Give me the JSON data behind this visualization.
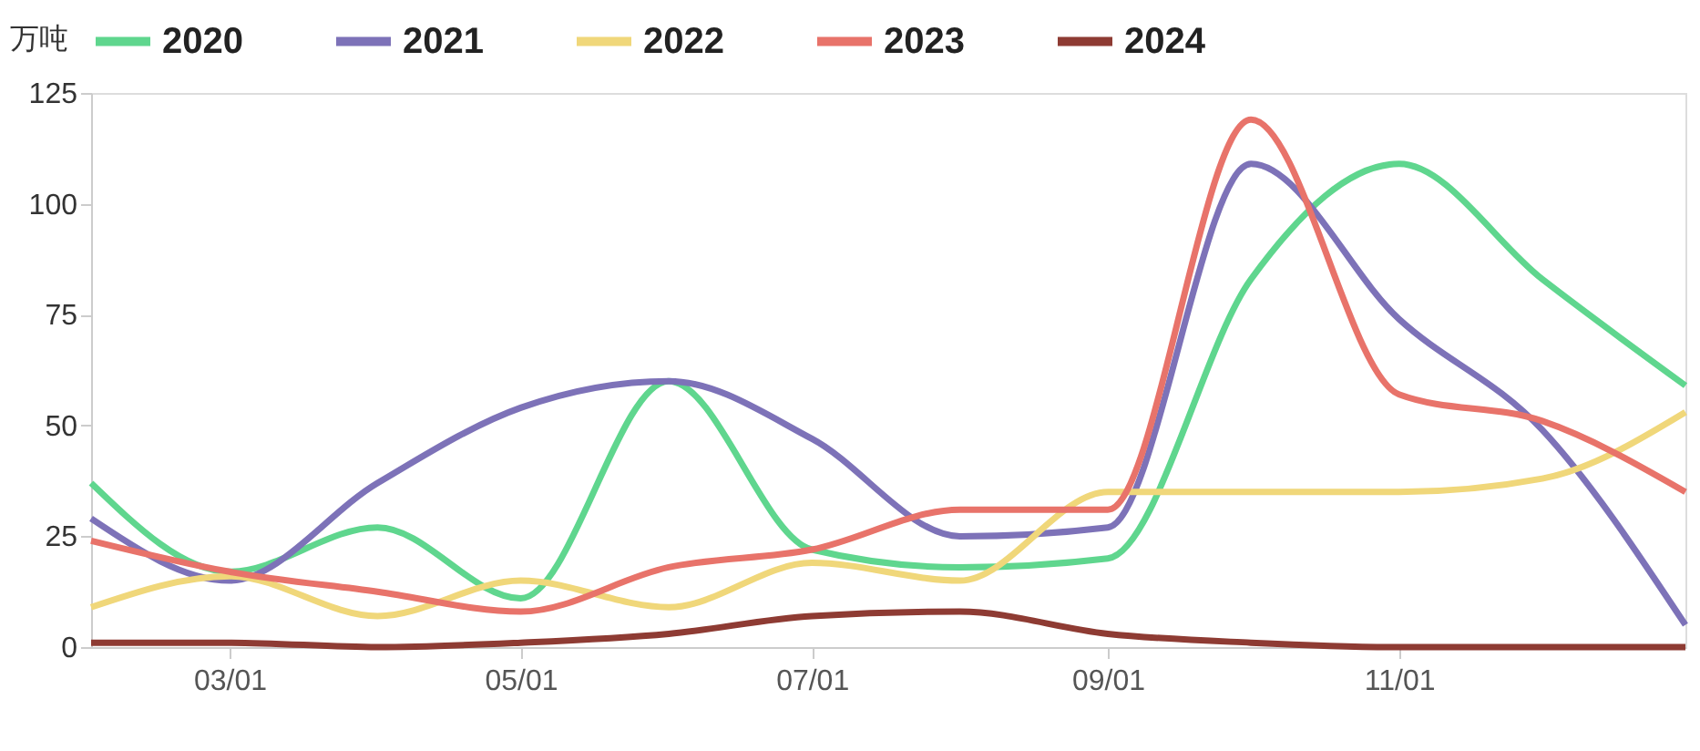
{
  "chart_data": {
    "type": "line",
    "ylabel": "万吨",
    "x": [
      "--02-01",
      "--03-01",
      "--04-01",
      "--05-01",
      "--06-01",
      "--07-01",
      "--08-01",
      "--09-01",
      "--10-01",
      "--11-01",
      "--12-01",
      "--12-31"
    ],
    "series": [
      {
        "name": "2020",
        "color": "#5fd68e",
        "values": [
          37,
          17,
          27,
          11,
          60,
          22,
          18,
          20,
          83,
          109,
          83,
          59
        ]
      },
      {
        "name": "2021",
        "color": "#7d72b8",
        "values": [
          29,
          15,
          37,
          54,
          60,
          47,
          25,
          27,
          109,
          74,
          49,
          5
        ]
      },
      {
        "name": "2022",
        "color": "#f0d77a",
        "values": [
          9,
          16,
          7,
          15,
          9,
          19,
          15,
          35,
          35,
          35,
          38,
          53
        ]
      },
      {
        "name": "2023",
        "color": "#e8736a",
        "values": [
          24,
          17,
          12.5,
          8,
          18,
          22,
          31,
          31,
          119,
          57,
          51,
          35
        ]
      },
      {
        "name": "2024",
        "color": "#8e3b33",
        "values": [
          1,
          1,
          0,
          1,
          3,
          7,
          8,
          3,
          1,
          0,
          0,
          0
        ]
      }
    ],
    "xlim": [
      "--02-01",
      "--12-31"
    ],
    "xticks": [
      {
        "value": "--03-01",
        "label": "03/01"
      },
      {
        "value": "--05-01",
        "label": "05/01"
      },
      {
        "value": "--07-01",
        "label": "07/01"
      },
      {
        "value": "--09-01",
        "label": "09/01"
      },
      {
        "value": "--11-01",
        "label": "11/01"
      }
    ],
    "ylim": [
      0,
      125
    ],
    "yticks": [
      0,
      25,
      50,
      75,
      100,
      125
    ],
    "grid": false,
    "legend": "top",
    "marker": "none",
    "line_style": "solid"
  }
}
